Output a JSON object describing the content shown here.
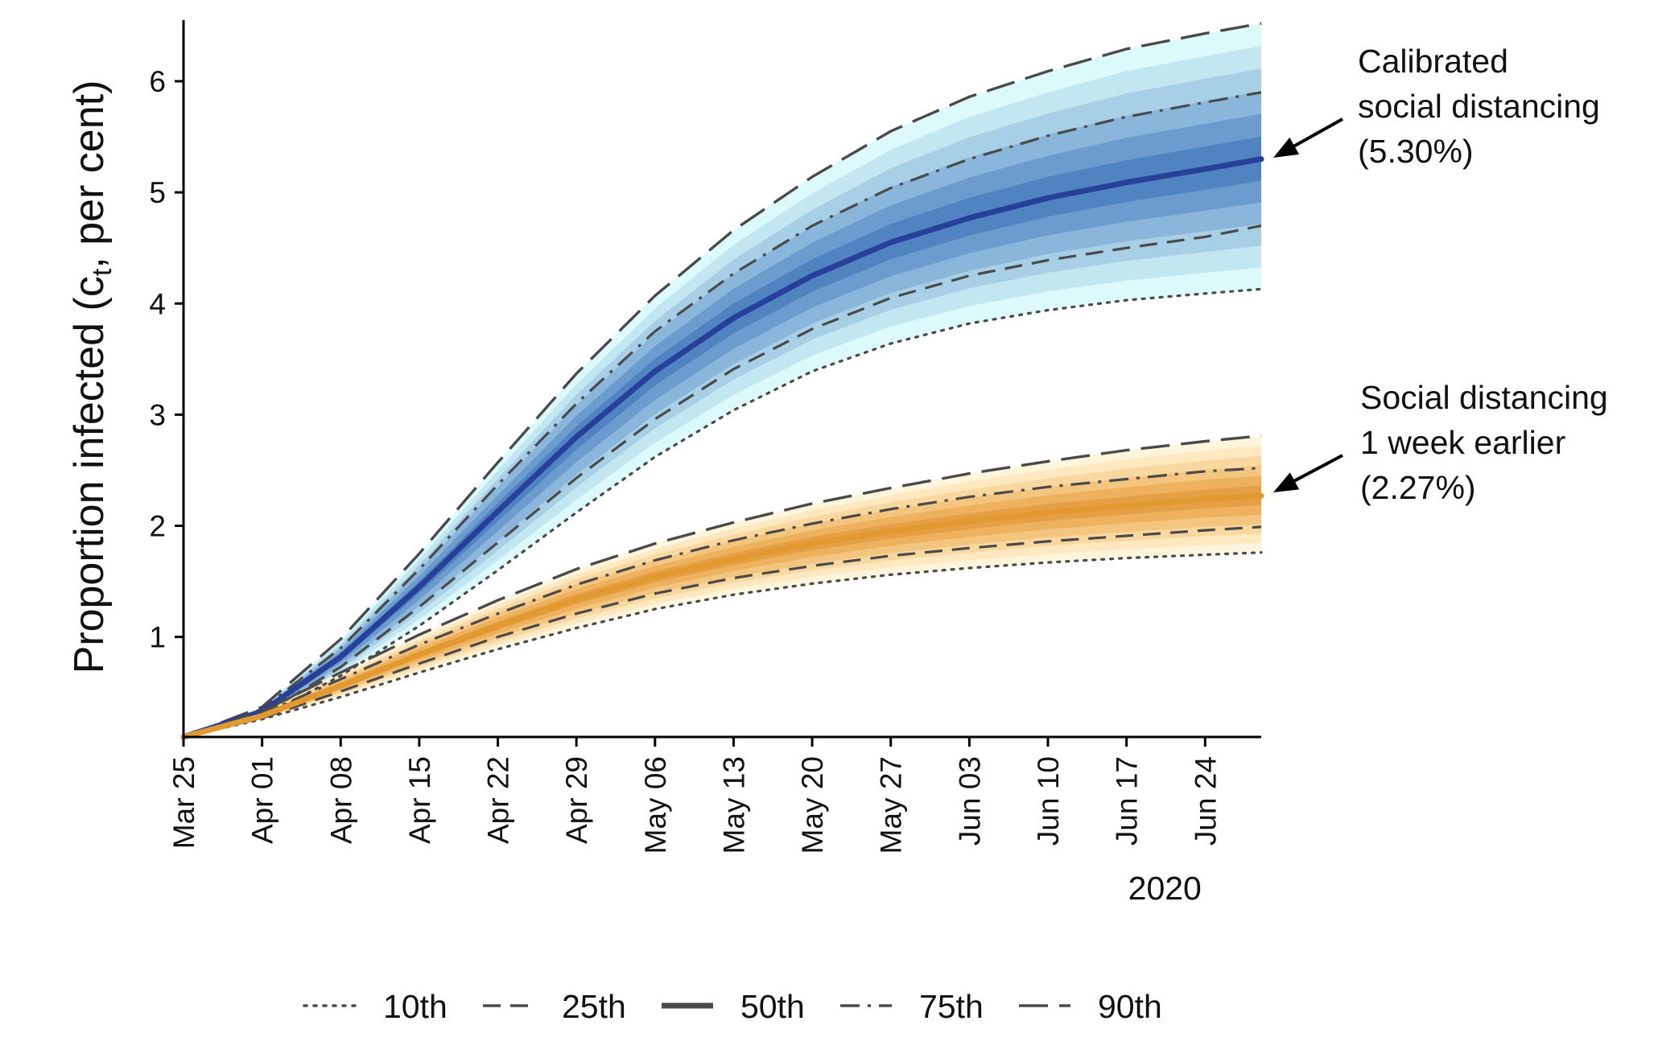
{
  "chart_data": {
    "type": "area",
    "title": "",
    "xlabel": "",
    "ylabel": {
      "prefix": "Proportion infected (c",
      "subscript": "t",
      "suffix": ", per cent)"
    },
    "year_label": "2020",
    "x_range_days": [
      0,
      96
    ],
    "ylim": [
      0.1,
      6.55
    ],
    "y_ticks": [
      1,
      2,
      3,
      4,
      5,
      6
    ],
    "x_ticks": [
      {
        "day": 0,
        "label": "Mar 25"
      },
      {
        "day": 7,
        "label": "Apr 01"
      },
      {
        "day": 14,
        "label": "Apr 08"
      },
      {
        "day": 21,
        "label": "Apr 15"
      },
      {
        "day": 28,
        "label": "Apr 22"
      },
      {
        "day": 35,
        "label": "Apr 29"
      },
      {
        "day": 42,
        "label": "May 06"
      },
      {
        "day": 49,
        "label": "May 13"
      },
      {
        "day": 56,
        "label": "May 20"
      },
      {
        "day": 63,
        "label": "May 27"
      },
      {
        "day": 70,
        "label": "Jun 03"
      },
      {
        "day": 77,
        "label": "Jun 10"
      },
      {
        "day": 84,
        "label": "Jun 17"
      },
      {
        "day": 91,
        "label": "Jun 24"
      }
    ],
    "x_days": [
      0,
      7,
      14,
      21,
      28,
      35,
      42,
      49,
      56,
      63,
      70,
      77,
      84,
      91,
      96
    ],
    "series": [
      {
        "name": "Calibrated social distancing",
        "fan_colors": [
          "#dcfafb",
          "#c3e7f1",
          "#a7cfe6",
          "#89b6da",
          "#6b9ccd",
          "#4f84c0"
        ],
        "median_color": "#27409a",
        "annotation": [
          "Calibrated",
          "social distancing",
          "(5.30%)"
        ],
        "percentiles": {
          "p10": [
            0.1,
            0.28,
            0.65,
            1.1,
            1.6,
            2.12,
            2.62,
            3.04,
            3.39,
            3.64,
            3.82,
            3.94,
            4.03,
            4.09,
            4.13
          ],
          "p25": [
            0.1,
            0.3,
            0.73,
            1.27,
            1.85,
            2.43,
            2.96,
            3.41,
            3.77,
            4.05,
            4.25,
            4.39,
            4.5,
            4.6,
            4.7
          ],
          "p50": [
            0.1,
            0.33,
            0.82,
            1.45,
            2.13,
            2.8,
            3.39,
            3.87,
            4.25,
            4.55,
            4.77,
            4.95,
            5.09,
            5.21,
            5.3
          ],
          "p75": [
            0.1,
            0.35,
            0.9,
            1.61,
            2.37,
            3.1,
            3.75,
            4.27,
            4.7,
            5.04,
            5.3,
            5.51,
            5.68,
            5.81,
            5.9
          ],
          "p90": [
            0.1,
            0.37,
            0.98,
            1.75,
            2.57,
            3.37,
            4.07,
            4.66,
            5.14,
            5.55,
            5.86,
            6.09,
            6.29,
            6.43,
            6.52
          ]
        }
      },
      {
        "name": "Social distancing 1 week earlier",
        "fan_colors": [
          "#fff5dc",
          "#fde8bf",
          "#f8d89f",
          "#f3c57e",
          "#eeb25e",
          "#e59f45"
        ],
        "median_color": "#e29930",
        "annotation": [
          "Social distancing",
          "1 week earlier",
          "(2.27%)"
        ],
        "percentiles": {
          "p10": [
            0.1,
            0.26,
            0.46,
            0.68,
            0.89,
            1.08,
            1.25,
            1.38,
            1.48,
            1.56,
            1.62,
            1.67,
            1.71,
            1.74,
            1.76
          ],
          "p25": [
            0.1,
            0.27,
            0.51,
            0.76,
            1.0,
            1.21,
            1.39,
            1.53,
            1.64,
            1.73,
            1.8,
            1.86,
            1.91,
            1.96,
            1.99
          ],
          "p50": [
            0.1,
            0.29,
            0.56,
            0.84,
            1.1,
            1.34,
            1.54,
            1.7,
            1.84,
            1.95,
            2.04,
            2.12,
            2.18,
            2.24,
            2.27
          ],
          "p75": [
            0.1,
            0.31,
            0.62,
            0.93,
            1.21,
            1.47,
            1.69,
            1.87,
            2.02,
            2.15,
            2.26,
            2.35,
            2.42,
            2.49,
            2.52
          ],
          "p90": [
            0.1,
            0.33,
            0.68,
            1.02,
            1.33,
            1.61,
            1.84,
            2.03,
            2.2,
            2.34,
            2.47,
            2.58,
            2.68,
            2.76,
            2.81
          ]
        }
      }
    ],
    "legend": {
      "position": "bottom",
      "items": [
        {
          "label": "10th",
          "style": "dotted"
        },
        {
          "label": "25th",
          "style": "dashed"
        },
        {
          "label": "50th",
          "style": "solid"
        },
        {
          "label": "75th",
          "style": "dashdot"
        },
        {
          "label": "90th",
          "style": "longdash"
        }
      ]
    }
  }
}
